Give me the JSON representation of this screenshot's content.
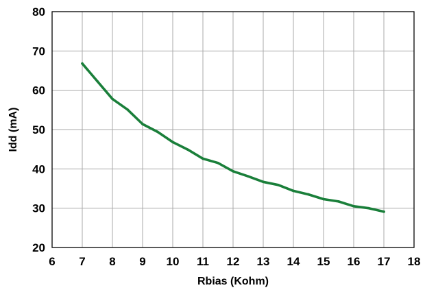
{
  "chart_data": {
    "type": "line",
    "title": "",
    "xlabel": "Rbias (Kohm)",
    "ylabel": "Idd (mA)",
    "xlim": [
      6,
      18
    ],
    "ylim": [
      20,
      80
    ],
    "x_ticks": [
      6,
      7,
      8,
      9,
      10,
      11,
      12,
      13,
      14,
      15,
      16,
      17,
      18
    ],
    "y_ticks": [
      20,
      30,
      40,
      50,
      60,
      70,
      80
    ],
    "grid": true,
    "series": [
      {
        "color": "#1a7f3a",
        "x": [
          7,
          7.5,
          8,
          8.5,
          9,
          9.5,
          10,
          10.5,
          11,
          11.5,
          12,
          12.5,
          13,
          13.5,
          14,
          14.5,
          15,
          15.5,
          16,
          16.5,
          17
        ],
        "y": [
          66.8,
          62.3,
          57.8,
          55.1,
          51.4,
          49.4,
          46.8,
          44.9,
          42.6,
          41.5,
          39.4,
          38.1,
          36.7,
          35.9,
          34.4,
          33.5,
          32.3,
          31.7,
          30.5,
          30.0,
          29.1
        ]
      }
    ]
  }
}
